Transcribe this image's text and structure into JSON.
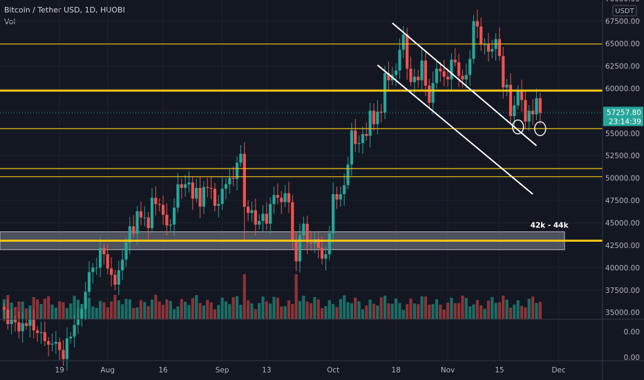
{
  "header": {
    "title": "Bitcoin / Tether USD, 1D, HUOBI",
    "indicator": "Vol"
  },
  "colors": {
    "background": "#131722",
    "up": "#26a69a",
    "down": "#ef5350",
    "up_volume": "#1b6e66",
    "down_volume": "#8c3436",
    "grid": "#1e222d",
    "text": "#b2b5be",
    "level": "#f5c518",
    "trendline": "#ffffff"
  },
  "chart_data": {
    "type": "candlestick",
    "symbol": "BTCUSDT",
    "interval": "1D",
    "exchange": "HUOBI",
    "currency_label": "USDT",
    "y_ticks": [
      "35000.00",
      "37500.00",
      "40000.00",
      "42500.00",
      "45000.00",
      "47500.00",
      "50000.00",
      "52500.00",
      "55000.00",
      "57500.00",
      "60000.00",
      "62500.00",
      "65000.00",
      "67500.00",
      "70000.00"
    ],
    "y_tick_values": [
      35000,
      37500,
      40000,
      42500,
      45000,
      47500,
      50000,
      52500,
      55000,
      57500,
      60000,
      62500,
      65000,
      67500,
      70000
    ],
    "volume_axis_ticks": [
      "0.00",
      "0.00"
    ],
    "x_ticks": [
      "19",
      "Aug",
      "16",
      "Sep",
      "13",
      "Oct",
      "18",
      "Nov",
      "15",
      "Dec"
    ],
    "last_price": "57257.80",
    "countdown": "23:14:39",
    "horizontal_levels": [
      {
        "price": 64950,
        "style": "thin"
      },
      {
        "price": 59750,
        "style": "thick"
      },
      {
        "price": 55500,
        "style": "thin"
      },
      {
        "price": 51050,
        "style": "thin"
      },
      {
        "price": 50150,
        "style": "thin"
      },
      {
        "price": 43000,
        "style": "thick"
      }
    ],
    "zone": {
      "low": 42000,
      "high": 44000,
      "label": "42k - 44k"
    },
    "trendlines": [
      {
        "from": [
          "Oct 17",
          67300
        ],
        "to": [
          "Nov 25",
          53600
        ]
      },
      {
        "from": [
          "Oct 13",
          62600
        ],
        "to": [
          "Nov 24",
          48200
        ]
      }
    ],
    "circles": [
      {
        "date": "Nov 20",
        "price": 55700
      },
      {
        "date": "Nov 26",
        "price": 55500
      }
    ],
    "ohlc_close": [
      {
        "date": "Jul 4",
        "close": 35300
      },
      {
        "date": "Jul 5",
        "close": 33700
      },
      {
        "date": "Jul 6",
        "close": 34200
      },
      {
        "date": "Jul 7",
        "close": 33900
      },
      {
        "date": "Jul 8",
        "close": 32900
      },
      {
        "date": "Jul 9",
        "close": 33800
      },
      {
        "date": "Jul 10",
        "close": 33500
      },
      {
        "date": "Jul 11",
        "close": 34200
      },
      {
        "date": "Jul 12",
        "close": 33000
      },
      {
        "date": "Jul 13",
        "close": 32700
      },
      {
        "date": "Jul 14",
        "close": 32800
      },
      {
        "date": "Jul 15",
        "close": 31800
      },
      {
        "date": "Jul 16",
        "close": 31400
      },
      {
        "date": "Jul 17",
        "close": 31500
      },
      {
        "date": "Jul 18",
        "close": 31700
      },
      {
        "date": "Jul 19",
        "close": 30800
      },
      {
        "date": "Jul 20",
        "close": 29800
      },
      {
        "date": "Jul 21",
        "close": 32100
      },
      {
        "date": "Jul 22",
        "close": 32300
      },
      {
        "date": "Jul 23",
        "close": 33600
      },
      {
        "date": "Jul 24",
        "close": 34300
      },
      {
        "date": "Jul 25",
        "close": 35400
      },
      {
        "date": "Jul 26",
        "close": 37300
      },
      {
        "date": "Jul 27",
        "close": 39500
      },
      {
        "date": "Jul 28",
        "close": 40000
      },
      {
        "date": "Jul 29",
        "close": 40000
      },
      {
        "date": "Jul 30",
        "close": 42200
      },
      {
        "date": "Jul 31",
        "close": 41500
      },
      {
        "date": "Aug 1",
        "close": 39900
      },
      {
        "date": "Aug 2",
        "close": 39200
      },
      {
        "date": "Aug 3",
        "close": 38100
      },
      {
        "date": "Aug 4",
        "close": 39700
      },
      {
        "date": "Aug 5",
        "close": 40900
      },
      {
        "date": "Aug 6",
        "close": 42800
      },
      {
        "date": "Aug 7",
        "close": 44600
      },
      {
        "date": "Aug 8",
        "close": 43800
      },
      {
        "date": "Aug 9",
        "close": 46300
      },
      {
        "date": "Aug 10",
        "close": 45600
      },
      {
        "date": "Aug 11",
        "close": 45600
      },
      {
        "date": "Aug 12",
        "close": 44400
      },
      {
        "date": "Aug 13",
        "close": 47800
      },
      {
        "date": "Aug 14",
        "close": 47100
      },
      {
        "date": "Aug 15",
        "close": 47000
      },
      {
        "date": "Aug 16",
        "close": 45900
      },
      {
        "date": "Aug 17",
        "close": 44700
      },
      {
        "date": "Aug 18",
        "close": 44800
      },
      {
        "date": "Aug 19",
        "close": 46700
      },
      {
        "date": "Aug 20",
        "close": 49300
      },
      {
        "date": "Aug 21",
        "close": 48900
      },
      {
        "date": "Aug 22",
        "close": 49300
      },
      {
        "date": "Aug 23",
        "close": 49500
      },
      {
        "date": "Aug 24",
        "close": 47700
      },
      {
        "date": "Aug 25",
        "close": 48900
      },
      {
        "date": "Aug 26",
        "close": 46800
      },
      {
        "date": "Aug 27",
        "close": 49000
      },
      {
        "date": "Aug 28",
        "close": 48900
      },
      {
        "date": "Aug 29",
        "close": 48800
      },
      {
        "date": "Aug 30",
        "close": 46900
      },
      {
        "date": "Aug 31",
        "close": 47100
      },
      {
        "date": "Sep 1",
        "close": 48800
      },
      {
        "date": "Sep 2",
        "close": 49300
      },
      {
        "date": "Sep 3",
        "close": 50000
      },
      {
        "date": "Sep 4",
        "close": 49900
      },
      {
        "date": "Sep 5",
        "close": 51700
      },
      {
        "date": "Sep 6",
        "close": 52700
      },
      {
        "date": "Sep 7",
        "close": 46800
      },
      {
        "date": "Sep 8",
        "close": 46100
      },
      {
        "date": "Sep 9",
        "close": 46400
      },
      {
        "date": "Sep 10",
        "close": 44800
      },
      {
        "date": "Sep 11",
        "close": 45200
      },
      {
        "date": "Sep 12",
        "close": 46000
      },
      {
        "date": "Sep 13",
        "close": 44900
      },
      {
        "date": "Sep 14",
        "close": 47100
      },
      {
        "date": "Sep 15",
        "close": 48100
      },
      {
        "date": "Sep 16",
        "close": 47800
      },
      {
        "date": "Sep 17",
        "close": 47300
      },
      {
        "date": "Sep 18",
        "close": 48300
      },
      {
        "date": "Sep 19",
        "close": 47300
      },
      {
        "date": "Sep 20",
        "close": 43000
      },
      {
        "date": "Sep 21",
        "close": 40700
      },
      {
        "date": "Sep 22",
        "close": 43600
      },
      {
        "date": "Sep 23",
        "close": 44900
      },
      {
        "date": "Sep 24",
        "close": 42800
      },
      {
        "date": "Sep 25",
        "close": 42700
      },
      {
        "date": "Sep 26",
        "close": 43200
      },
      {
        "date": "Sep 27",
        "close": 42200
      },
      {
        "date": "Sep 28",
        "close": 41000
      },
      {
        "date": "Sep 29",
        "close": 41500
      },
      {
        "date": "Sep 30",
        "close": 43800
      },
      {
        "date": "Oct 1",
        "close": 48200
      },
      {
        "date": "Oct 2",
        "close": 47600
      },
      {
        "date": "Oct 3",
        "close": 48200
      },
      {
        "date": "Oct 4",
        "close": 49200
      },
      {
        "date": "Oct 5",
        "close": 51500
      },
      {
        "date": "Oct 6",
        "close": 55300
      },
      {
        "date": "Oct 7",
        "close": 53800
      },
      {
        "date": "Oct 8",
        "close": 53900
      },
      {
        "date": "Oct 9",
        "close": 54900
      },
      {
        "date": "Oct 10",
        "close": 54700
      },
      {
        "date": "Oct 11",
        "close": 57500
      },
      {
        "date": "Oct 12",
        "close": 56000
      },
      {
        "date": "Oct 13",
        "close": 57400
      },
      {
        "date": "Oct 14",
        "close": 57300
      },
      {
        "date": "Oct 15",
        "close": 61700
      },
      {
        "date": "Oct 16",
        "close": 60900
      },
      {
        "date": "Oct 17",
        "close": 61500
      },
      {
        "date": "Oct 18",
        "close": 62000
      },
      {
        "date": "Oct 19",
        "close": 64300
      },
      {
        "date": "Oct 20",
        "close": 66000
      },
      {
        "date": "Oct 21",
        "close": 62200
      },
      {
        "date": "Oct 22",
        "close": 60700
      },
      {
        "date": "Oct 23",
        "close": 61300
      },
      {
        "date": "Oct 24",
        "close": 60900
      },
      {
        "date": "Oct 25",
        "close": 63100
      },
      {
        "date": "Oct 26",
        "close": 60300
      },
      {
        "date": "Oct 27",
        "close": 58400
      },
      {
        "date": "Oct 28",
        "close": 60600
      },
      {
        "date": "Oct 29",
        "close": 62200
      },
      {
        "date": "Oct 30",
        "close": 61900
      },
      {
        "date": "Oct 31",
        "close": 61300
      },
      {
        "date": "Nov 1",
        "close": 61000
      },
      {
        "date": "Nov 2",
        "close": 63200
      },
      {
        "date": "Nov 3",
        "close": 62900
      },
      {
        "date": "Nov 4",
        "close": 61400
      },
      {
        "date": "Nov 5",
        "close": 61000
      },
      {
        "date": "Nov 6",
        "close": 61500
      },
      {
        "date": "Nov 7",
        "close": 63300
      },
      {
        "date": "Nov 8",
        "close": 67500
      },
      {
        "date": "Nov 9",
        "close": 66900
      },
      {
        "date": "Nov 10",
        "close": 64900
      },
      {
        "date": "Nov 11",
        "close": 64900
      },
      {
        "date": "Nov 12",
        "close": 64100
      },
      {
        "date": "Nov 13",
        "close": 64400
      },
      {
        "date": "Nov 14",
        "close": 65500
      },
      {
        "date": "Nov 15",
        "close": 63600
      },
      {
        "date": "Nov 16",
        "close": 60100
      },
      {
        "date": "Nov 17",
        "close": 60400
      },
      {
        "date": "Nov 18",
        "close": 56900
      },
      {
        "date": "Nov 19",
        "close": 58100
      },
      {
        "date": "Nov 20",
        "close": 59700
      },
      {
        "date": "Nov 21",
        "close": 58700
      },
      {
        "date": "Nov 22",
        "close": 56300
      },
      {
        "date": "Nov 23",
        "close": 57500
      },
      {
        "date": "Nov 24",
        "close": 57100
      },
      {
        "date": "Nov 25",
        "close": 58900
      },
      {
        "date": "Nov 26",
        "close": 57258
      }
    ],
    "grid": true,
    "legend_position": "none"
  }
}
